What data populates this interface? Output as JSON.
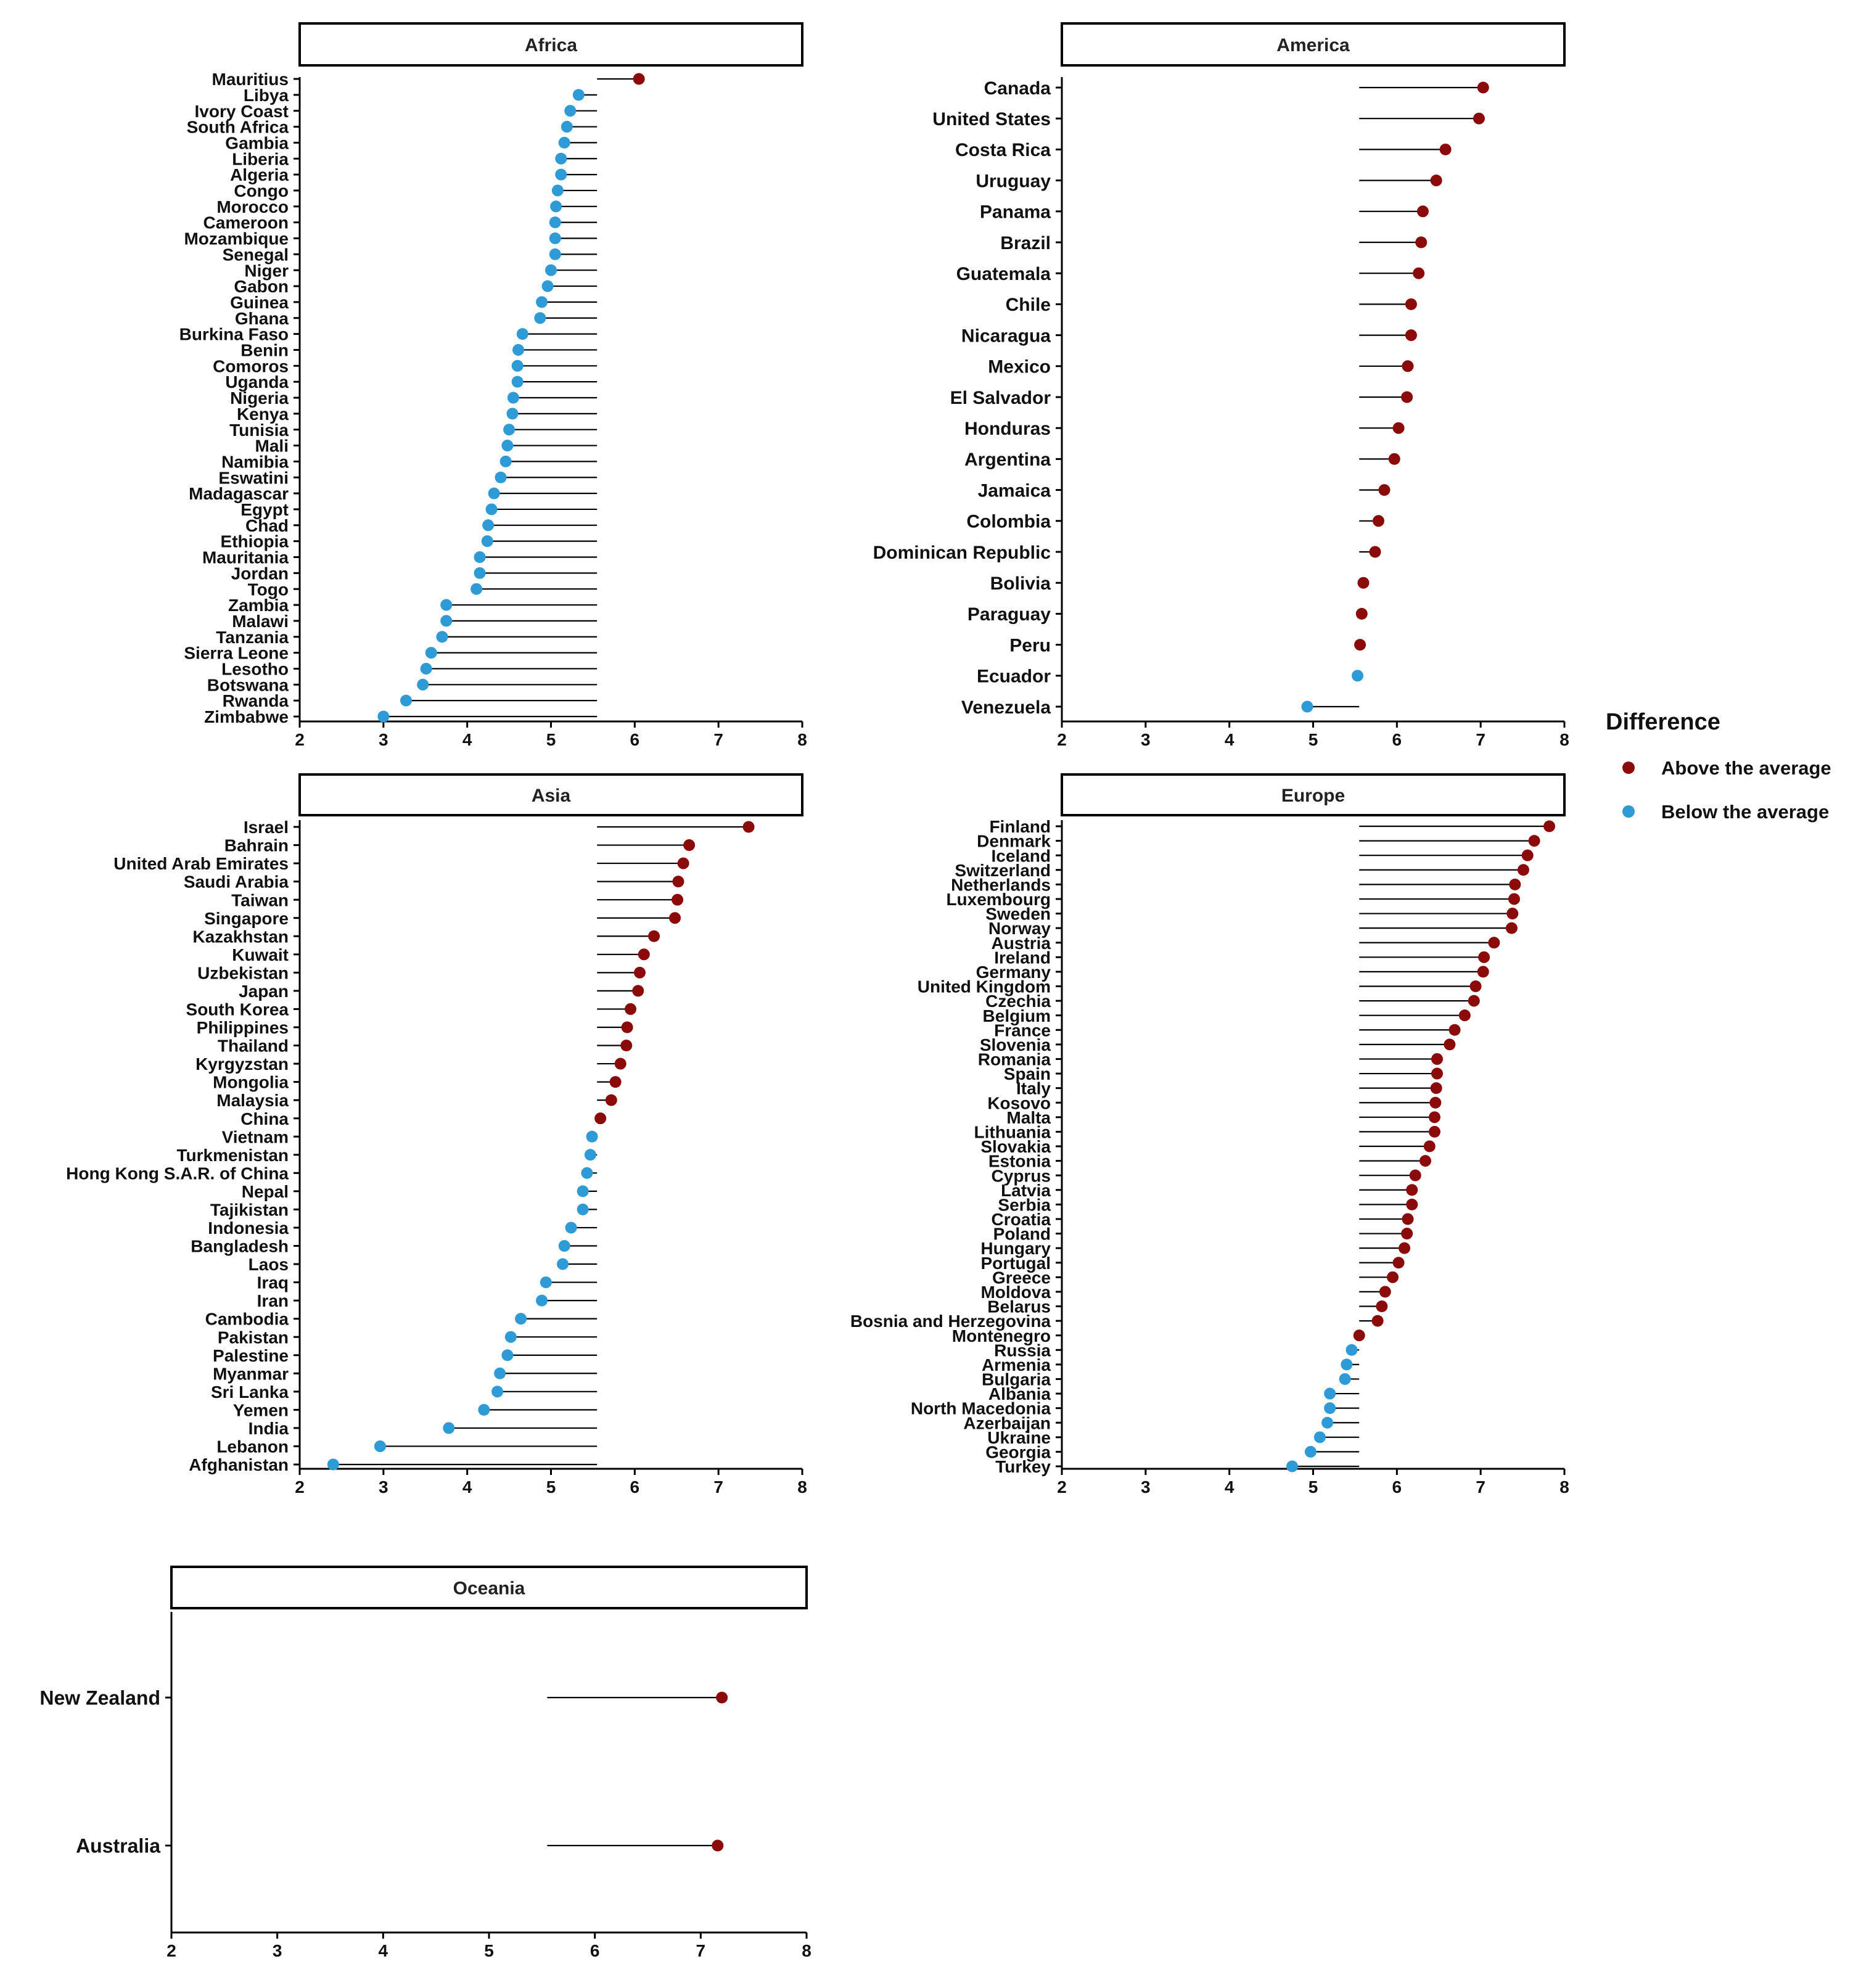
{
  "chart_data": {
    "type": "lollipop",
    "reference_value": 5.55,
    "x_ticks": [
      2,
      3,
      4,
      5,
      6,
      7,
      8
    ],
    "xlim": [
      2,
      8
    ],
    "legend": {
      "title": "Difference",
      "placement": "right",
      "entries": [
        {
          "label": "Above the average",
          "color": "#8B0A0A"
        },
        {
          "label": "Below the average",
          "color": "#2E9BD6"
        }
      ]
    },
    "panels": [
      {
        "name": "Africa",
        "countries": [
          {
            "name": "Mauritius",
            "value": 6.05
          },
          {
            "name": "Libya",
            "value": 5.33
          },
          {
            "name": "Ivory Coast",
            "value": 5.23
          },
          {
            "name": "South Africa",
            "value": 5.19
          },
          {
            "name": "Gambia",
            "value": 5.16
          },
          {
            "name": "Liberia",
            "value": 5.12
          },
          {
            "name": "Algeria",
            "value": 5.12
          },
          {
            "name": "Congo",
            "value": 5.08
          },
          {
            "name": "Morocco",
            "value": 5.06
          },
          {
            "name": "Cameroon",
            "value": 5.05
          },
          {
            "name": "Mozambique",
            "value": 5.05
          },
          {
            "name": "Senegal",
            "value": 5.05
          },
          {
            "name": "Niger",
            "value": 5.0
          },
          {
            "name": "Gabon",
            "value": 4.96
          },
          {
            "name": "Guinea",
            "value": 4.89
          },
          {
            "name": "Ghana",
            "value": 4.87
          },
          {
            "name": "Burkina Faso",
            "value": 4.66
          },
          {
            "name": "Benin",
            "value": 4.61
          },
          {
            "name": "Comoros",
            "value": 4.6
          },
          {
            "name": "Uganda",
            "value": 4.6
          },
          {
            "name": "Nigeria",
            "value": 4.55
          },
          {
            "name": "Kenya",
            "value": 4.54
          },
          {
            "name": "Tunisia",
            "value": 4.5
          },
          {
            "name": "Mali",
            "value": 4.48
          },
          {
            "name": "Namibia",
            "value": 4.46
          },
          {
            "name": "Eswatini",
            "value": 4.4
          },
          {
            "name": "Madagascar",
            "value": 4.32
          },
          {
            "name": "Egypt",
            "value": 4.29
          },
          {
            "name": "Chad",
            "value": 4.25
          },
          {
            "name": "Ethiopia",
            "value": 4.24
          },
          {
            "name": "Mauritania",
            "value": 4.15
          },
          {
            "name": "Jordan",
            "value": 4.15
          },
          {
            "name": "Togo",
            "value": 4.11
          },
          {
            "name": "Zambia",
            "value": 3.75
          },
          {
            "name": "Malawi",
            "value": 3.75
          },
          {
            "name": "Tanzania",
            "value": 3.7
          },
          {
            "name": "Sierra Leone",
            "value": 3.57
          },
          {
            "name": "Lesotho",
            "value": 3.51
          },
          {
            "name": "Botswana",
            "value": 3.47
          },
          {
            "name": "Rwanda",
            "value": 3.27
          },
          {
            "name": "Zimbabwe",
            "value": 3.0
          }
        ]
      },
      {
        "name": "America",
        "countries": [
          {
            "name": "Canada",
            "value": 7.03
          },
          {
            "name": "United States",
            "value": 6.98
          },
          {
            "name": "Costa Rica",
            "value": 6.58
          },
          {
            "name": "Uruguay",
            "value": 6.47
          },
          {
            "name": "Panama",
            "value": 6.31
          },
          {
            "name": "Brazil",
            "value": 6.29
          },
          {
            "name": "Guatemala",
            "value": 6.26
          },
          {
            "name": "Chile",
            "value": 6.17
          },
          {
            "name": "Nicaragua",
            "value": 6.17
          },
          {
            "name": "Mexico",
            "value": 6.13
          },
          {
            "name": "El Salvador",
            "value": 6.12
          },
          {
            "name": "Honduras",
            "value": 6.02
          },
          {
            "name": "Argentina",
            "value": 5.97
          },
          {
            "name": "Jamaica",
            "value": 5.85
          },
          {
            "name": "Colombia",
            "value": 5.78
          },
          {
            "name": "Dominican Republic",
            "value": 5.74
          },
          {
            "name": "Bolivia",
            "value": 5.6
          },
          {
            "name": "Paraguay",
            "value": 5.58
          },
          {
            "name": "Peru",
            "value": 5.56
          },
          {
            "name": "Ecuador",
            "value": 5.53
          },
          {
            "name": "Venezuela",
            "value": 4.93
          }
        ]
      },
      {
        "name": "Asia",
        "countries": [
          {
            "name": "Israel",
            "value": 7.36
          },
          {
            "name": "Bahrain",
            "value": 6.65
          },
          {
            "name": "United Arab Emirates",
            "value": 6.58
          },
          {
            "name": "Saudi Arabia",
            "value": 6.52
          },
          {
            "name": "Taiwan",
            "value": 6.51
          },
          {
            "name": "Singapore",
            "value": 6.48
          },
          {
            "name": "Kazakhstan",
            "value": 6.23
          },
          {
            "name": "Kuwait",
            "value": 6.11
          },
          {
            "name": "Uzbekistan",
            "value": 6.06
          },
          {
            "name": "Japan",
            "value": 6.04
          },
          {
            "name": "South Korea",
            "value": 5.95
          },
          {
            "name": "Philippines",
            "value": 5.91
          },
          {
            "name": "Thailand",
            "value": 5.9
          },
          {
            "name": "Kyrgyzstan",
            "value": 5.83
          },
          {
            "name": "Mongolia",
            "value": 5.77
          },
          {
            "name": "Malaysia",
            "value": 5.72
          },
          {
            "name": "China",
            "value": 5.59
          },
          {
            "name": "Vietnam",
            "value": 5.49
          },
          {
            "name": "Turkmenistan",
            "value": 5.47
          },
          {
            "name": "Hong Kong S.A.R. of China",
            "value": 5.43
          },
          {
            "name": "Nepal",
            "value": 5.38
          },
          {
            "name": "Tajikistan",
            "value": 5.38
          },
          {
            "name": "Indonesia",
            "value": 5.24
          },
          {
            "name": "Bangladesh",
            "value": 5.16
          },
          {
            "name": "Laos",
            "value": 5.14
          },
          {
            "name": "Iraq",
            "value": 4.94
          },
          {
            "name": "Iran",
            "value": 4.89
          },
          {
            "name": "Cambodia",
            "value": 4.64
          },
          {
            "name": "Pakistan",
            "value": 4.52
          },
          {
            "name": "Palestine",
            "value": 4.48
          },
          {
            "name": "Myanmar",
            "value": 4.39
          },
          {
            "name": "Sri Lanka",
            "value": 4.36
          },
          {
            "name": "Yemen",
            "value": 4.2
          },
          {
            "name": "India",
            "value": 3.78
          },
          {
            "name": "Lebanon",
            "value": 2.96
          },
          {
            "name": "Afghanistan",
            "value": 2.4
          }
        ]
      },
      {
        "name": "Europe",
        "countries": [
          {
            "name": "Finland",
            "value": 7.82
          },
          {
            "name": "Denmark",
            "value": 7.64
          },
          {
            "name": "Iceland",
            "value": 7.56
          },
          {
            "name": "Switzerland",
            "value": 7.51
          },
          {
            "name": "Netherlands",
            "value": 7.41
          },
          {
            "name": "Luxembourg",
            "value": 7.4
          },
          {
            "name": "Sweden",
            "value": 7.38
          },
          {
            "name": "Norway",
            "value": 7.37
          },
          {
            "name": "Austria",
            "value": 7.16
          },
          {
            "name": "Ireland",
            "value": 7.04
          },
          {
            "name": "Germany",
            "value": 7.03
          },
          {
            "name": "United Kingdom",
            "value": 6.94
          },
          {
            "name": "Czechia",
            "value": 6.92
          },
          {
            "name": "Belgium",
            "value": 6.81
          },
          {
            "name": "France",
            "value": 6.69
          },
          {
            "name": "Slovenia",
            "value": 6.63
          },
          {
            "name": "Romania",
            "value": 6.48
          },
          {
            "name": "Spain",
            "value": 6.48
          },
          {
            "name": "Italy",
            "value": 6.47
          },
          {
            "name": "Kosovo",
            "value": 6.46
          },
          {
            "name": "Malta",
            "value": 6.45
          },
          {
            "name": "Lithuania",
            "value": 6.45
          },
          {
            "name": "Slovakia",
            "value": 6.39
          },
          {
            "name": "Estonia",
            "value": 6.34
          },
          {
            "name": "Cyprus",
            "value": 6.22
          },
          {
            "name": "Latvia",
            "value": 6.18
          },
          {
            "name": "Serbia",
            "value": 6.18
          },
          {
            "name": "Croatia",
            "value": 6.13
          },
          {
            "name": "Poland",
            "value": 6.12
          },
          {
            "name": "Hungary",
            "value": 6.09
          },
          {
            "name": "Portugal",
            "value": 6.02
          },
          {
            "name": "Greece",
            "value": 5.95
          },
          {
            "name": "Moldova",
            "value": 5.86
          },
          {
            "name": "Belarus",
            "value": 5.82
          },
          {
            "name": "Bosnia and Herzegovina",
            "value": 5.77
          },
          {
            "name": "Montenegro",
            "value": 5.55
          },
          {
            "name": "Russia",
            "value": 5.46
          },
          {
            "name": "Armenia",
            "value": 5.4
          },
          {
            "name": "Bulgaria",
            "value": 5.38
          },
          {
            "name": "Albania",
            "value": 5.2
          },
          {
            "name": "North Macedonia",
            "value": 5.2
          },
          {
            "name": "Azerbaijan",
            "value": 5.17
          },
          {
            "name": "Ukraine",
            "value": 5.08
          },
          {
            "name": "Georgia",
            "value": 4.97
          },
          {
            "name": "Turkey",
            "value": 4.75
          }
        ]
      },
      {
        "name": "Oceania",
        "countries": [
          {
            "name": "New Zealand",
            "value": 7.2
          },
          {
            "name": "Australia",
            "value": 7.16
          }
        ]
      }
    ]
  }
}
